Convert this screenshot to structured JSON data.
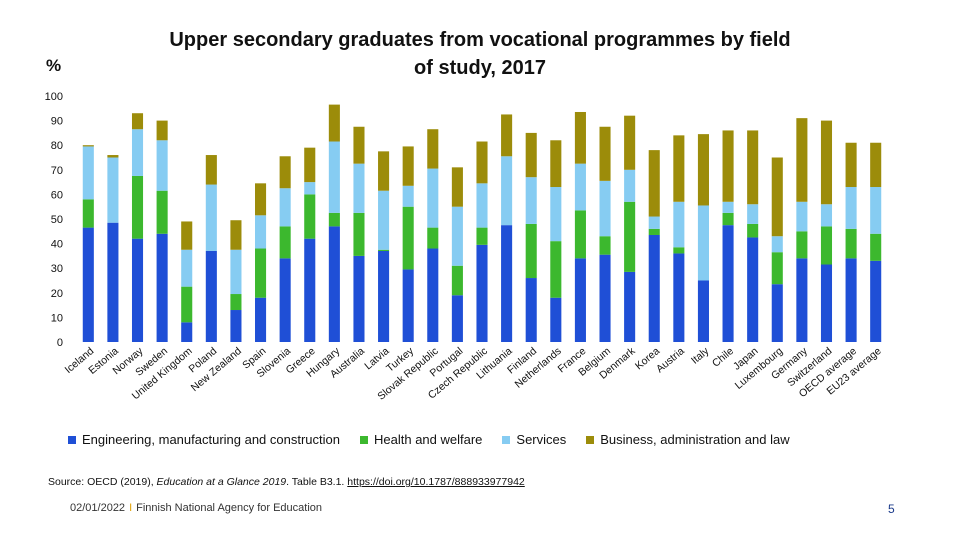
{
  "chart_data": {
    "type": "bar",
    "stacked": true,
    "title": "Upper secondary graduates from vocational programmes by field of study, 2017",
    "ylabel": "%",
    "ylim": [
      0,
      100
    ],
    "yticks": [
      0,
      10,
      20,
      30,
      40,
      50,
      60,
      70,
      80,
      90,
      100
    ],
    "grid": false,
    "legend_position": "bottom",
    "categories": [
      "Iceland",
      "Estonia",
      "Norway",
      "Sweden",
      "United Kingdom",
      "Poland",
      "New Zealand",
      "Spain",
      "Slovenia",
      "Greece",
      "Hungary",
      "Australia",
      "Latvia",
      "Turkey",
      "Slovak Republic",
      "Portugal",
      "Czech Republic",
      "Lithuania",
      "Finland",
      "Netherlands",
      "France",
      "Belgium",
      "Denmark",
      "Korea",
      "Austria",
      "Italy",
      "Chile",
      "Japan",
      "Luxembourg",
      "Germany",
      "Switzerland",
      "OECD average",
      "EU23 average"
    ],
    "series": [
      {
        "name": "Engineering, manufacturing and construction",
        "color": "#1f4fd6",
        "values": [
          46.5,
          48.5,
          42,
          44,
          8,
          37,
          13,
          18,
          34,
          42,
          47,
          35,
          37,
          29.5,
          38,
          19,
          39.5,
          47.5,
          26,
          18,
          34,
          35.5,
          28.5,
          43.5,
          36,
          25,
          47.5,
          42.5,
          23.5,
          34,
          31.5,
          34,
          33
        ]
      },
      {
        "name": "Health and welfare",
        "color": "#3cb82e",
        "values": [
          11.5,
          0,
          25.5,
          17.5,
          14.5,
          0,
          6.5,
          20,
          13,
          18,
          5.5,
          17.5,
          0.5,
          25.5,
          8.5,
          12,
          7,
          0,
          22,
          23,
          19.5,
          7.5,
          28.5,
          2.5,
          2.5,
          0,
          5,
          5.5,
          13,
          11,
          15.5,
          12,
          11
        ]
      },
      {
        "name": "Services",
        "color": "#86ccf2",
        "values": [
          21.5,
          26.5,
          19,
          20.5,
          15,
          27,
          18,
          13.5,
          15.5,
          5,
          29,
          20,
          24,
          8.5,
          24,
          24,
          18,
          28,
          19,
          22,
          19,
          22.5,
          13,
          5,
          18.5,
          30.5,
          4.5,
          8,
          6.5,
          12,
          9,
          17,
          19
        ]
      },
      {
        "name": "Business, administration and law",
        "color": "#9c8c0a",
        "values": [
          0.5,
          1,
          6.5,
          8,
          11.5,
          12,
          12,
          13,
          13,
          14,
          15,
          15,
          16,
          16,
          16,
          16,
          17,
          17,
          18,
          19,
          21,
          22,
          22,
          27,
          27,
          29,
          29,
          30,
          32,
          34,
          34,
          18,
          18
        ]
      }
    ]
  },
  "source": {
    "prefix": "Source: OECD (2019), ",
    "italic": "Education at a Glance 2019",
    "suffix": ". Table B3.1. ",
    "link": "https://doi.org/10.1787/888933977942"
  },
  "footer": {
    "date": "02/01/2022",
    "separator": "I",
    "org": "Finnish National Agency for Education"
  },
  "page_number": "5"
}
